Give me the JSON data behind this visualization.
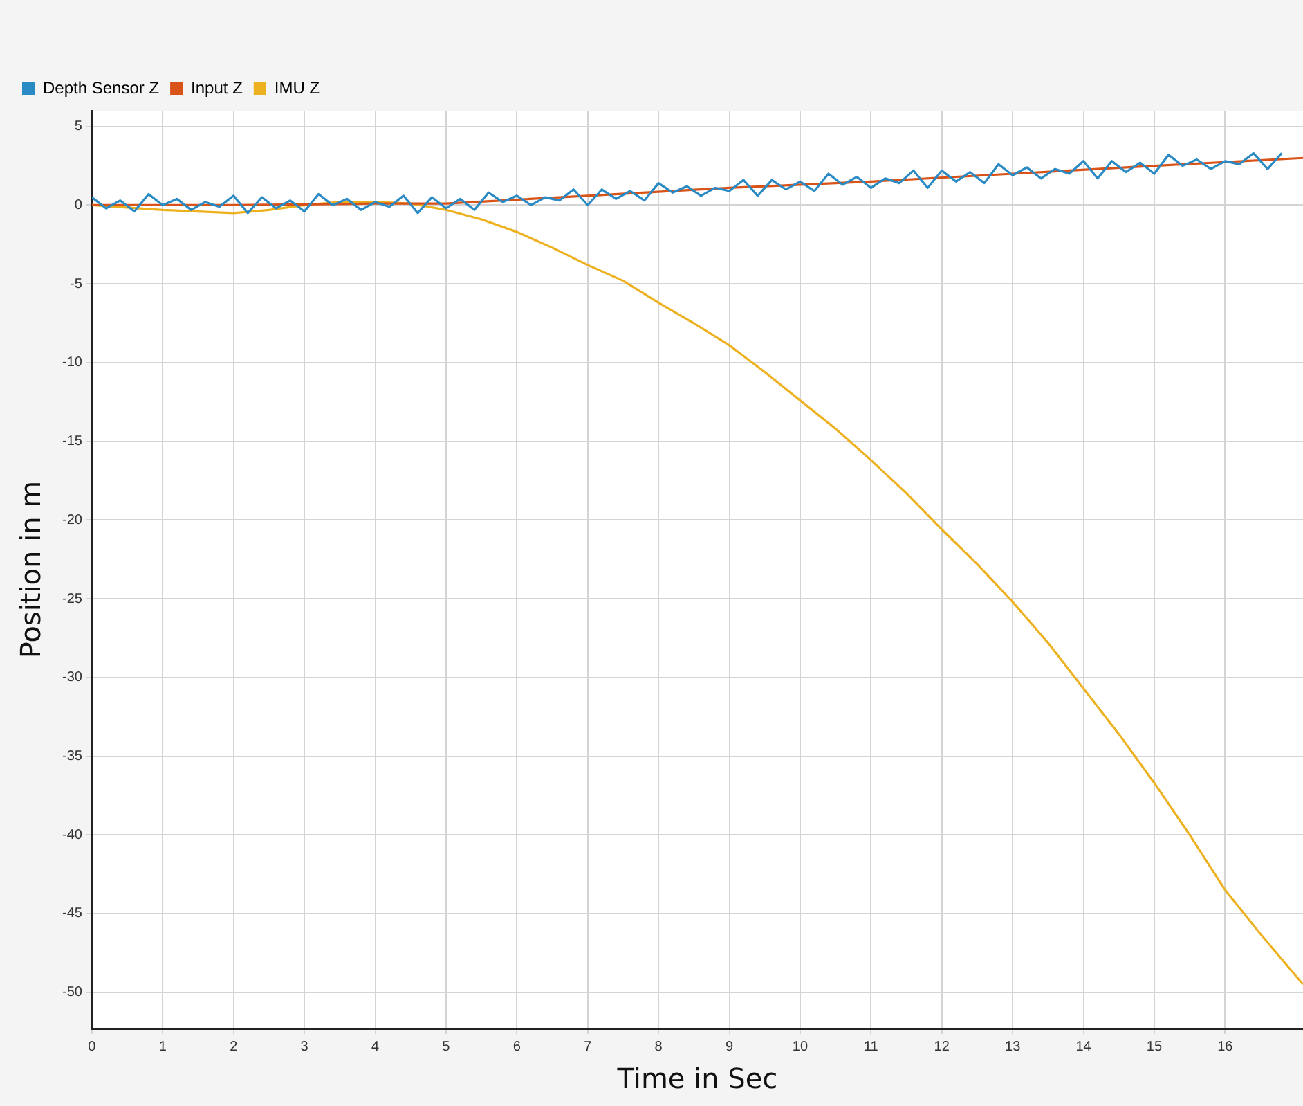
{
  "chart_data": {
    "type": "line",
    "xlabel": "Time in Sec",
    "ylabel": "Position in m",
    "xlim": [
      0,
      17.1
    ],
    "xticks": [
      0,
      1,
      2,
      3,
      4,
      5,
      6,
      7,
      8,
      9,
      10,
      11,
      12,
      13,
      14,
      15,
      16
    ],
    "ylim": [
      -52.3,
      6
    ],
    "yticks": [
      5,
      0,
      -5,
      -10,
      -15,
      -20,
      -25,
      -30,
      -35,
      -40,
      -45,
      -50
    ],
    "grid": true,
    "legend": "top left",
    "marker": "none",
    "line_style": "solid",
    "series": [
      {
        "name": "Depth Sensor Z",
        "color": "#2a8ac4",
        "x": [
          0,
          0.2,
          0.4,
          0.6,
          0.8,
          1,
          1.2,
          1.4,
          1.6,
          1.8,
          2,
          2.2,
          2.4,
          2.6,
          2.8,
          3,
          3.2,
          3.4,
          3.6,
          3.8,
          4,
          4.2,
          4.4,
          4.6,
          4.8,
          5,
          5.2,
          5.4,
          5.6,
          5.8,
          6,
          6.2,
          6.4,
          6.6,
          6.8,
          7,
          7.2,
          7.4,
          7.6,
          7.8,
          8,
          8.2,
          8.4,
          8.6,
          8.8,
          9,
          9.2,
          9.4,
          9.6,
          9.8,
          10,
          10.2,
          10.4,
          10.6,
          10.8,
          11,
          11.2,
          11.4,
          11.6,
          11.8,
          12,
          12.2,
          12.4,
          12.6,
          12.8,
          13,
          13.2,
          13.4,
          13.6,
          13.8,
          14,
          14.2,
          14.4,
          14.6,
          14.8,
          15,
          15.2,
          15.4,
          15.6,
          15.8,
          16,
          16.2,
          16.4,
          16.6,
          16.8
        ],
        "values": [
          0.5,
          -0.2,
          0.3,
          -0.4,
          0.7,
          0,
          0.4,
          -0.3,
          0.2,
          -0.1,
          0.6,
          -0.5,
          0.5,
          -0.2,
          0.3,
          -0.4,
          0.7,
          0,
          0.4,
          -0.3,
          0.2,
          -0.1,
          0.6,
          -0.5,
          0.5,
          -0.2,
          0.4,
          -0.3,
          0.8,
          0.2,
          0.6,
          0,
          0.5,
          0.3,
          1,
          0,
          1,
          0.4,
          0.9,
          0.3,
          1.4,
          0.8,
          1.2,
          0.6,
          1.1,
          0.9,
          1.6,
          0.6,
          1.6,
          1,
          1.5,
          0.9,
          2,
          1.3,
          1.8,
          1.1,
          1.7,
          1.4,
          2.2,
          1.1,
          2.2,
          1.5,
          2.1,
          1.4,
          2.6,
          1.9,
          2.4,
          1.7,
          2.3,
          2,
          2.8,
          1.7,
          2.8,
          2.1,
          2.7,
          2,
          3.2,
          2.5,
          2.9,
          2.3,
          2.8,
          2.6,
          3.3,
          2.3,
          3.3
        ]
      },
      {
        "name": "Input Z",
        "color": "#d95319",
        "x": [
          0,
          2,
          4,
          5,
          7,
          9,
          11,
          13,
          15,
          17.1
        ],
        "values": [
          0,
          0,
          0.1,
          0.1,
          0.6,
          1.1,
          1.5,
          2,
          2.5,
          3
        ]
      },
      {
        "name": "IMU Z",
        "color": "#edb120",
        "x": [
          0,
          1,
          1.5,
          2,
          2.5,
          3,
          3.5,
          4,
          4.5,
          5,
          5.5,
          6,
          6.5,
          7,
          7.5,
          8,
          8.5,
          9,
          9.5,
          10,
          10.5,
          11,
          11.5,
          12,
          12.5,
          13,
          13.5,
          14,
          14.5,
          15,
          15.5,
          16,
          16.5,
          17.1
        ],
        "values": [
          0,
          -0.3,
          -0.4,
          -0.5,
          -0.3,
          0,
          0.2,
          0.2,
          0.1,
          -0.3,
          -0.9,
          -1.7,
          -2.7,
          -3.8,
          -4.8,
          -6.2,
          -7.5,
          -8.9,
          -10.6,
          -12.4,
          -14.2,
          -16.2,
          -18.3,
          -20.6,
          -22.8,
          -25.2,
          -27.8,
          -30.7,
          -33.6,
          -36.7,
          -40,
          -43.5,
          -46.3,
          -49.5
        ]
      }
    ]
  }
}
